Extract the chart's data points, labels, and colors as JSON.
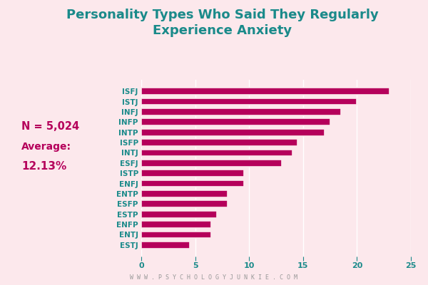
{
  "title_line1": "Personality Types Who Said They Regularly",
  "title_line2": "Experience Anxiety",
  "title_color": "#1a8a8a",
  "bar_color": "#b5005b",
  "background_color": "#fce8ec",
  "categories": [
    "ISFJ",
    "ISTJ",
    "INFJ",
    "INFP",
    "INTP",
    "ISFP",
    "INTJ",
    "ESFJ",
    "ISTP",
    "ENFJ",
    "ENTP",
    "ESFP",
    "ESTP",
    "ENFP",
    "ENTJ",
    "ESTJ"
  ],
  "values": [
    23,
    20,
    18.5,
    17.5,
    17,
    14.5,
    14,
    13,
    9.5,
    9.5,
    8,
    8,
    7,
    6.5,
    6.5,
    4.5
  ],
  "xlim": [
    0,
    25
  ],
  "xticks": [
    0,
    5,
    10,
    15,
    20,
    25
  ],
  "n_label": "N = 5,024",
  "avg_label": "Average:",
  "avg_value": "12.13%",
  "stats_color": "#b5005b",
  "watermark": "W W W . P S Y C H O L O G Y J U N K I E . C O M",
  "watermark_color": "#999999",
  "tick_label_color": "#1a8a8a",
  "ytick_fontsize": 7.5,
  "xtick_fontsize": 8.0,
  "bar_height": 0.68,
  "title_fontsize": 13,
  "stats_fontsize_n": 10.5,
  "stats_fontsize_avg": 10.0,
  "stats_fontsize_val": 11.0
}
